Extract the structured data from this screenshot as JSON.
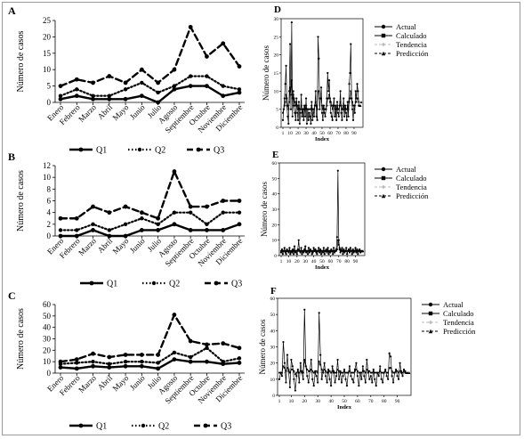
{
  "colors": {
    "line": "#000000",
    "axis": "#000000",
    "prediction": "#777777",
    "tendencia": "#bbbbbb",
    "frame": "#9a9a9a"
  },
  "chart_data": [
    {
      "panel": "A",
      "type": "line",
      "ylabel": "Número de casos",
      "ylim": [
        0,
        25
      ],
      "yticks": [
        0,
        5,
        10,
        15,
        20,
        25
      ],
      "categories": [
        "Enero",
        "Febrero",
        "Marzo",
        "Abril",
        "Mayo",
        "Junio",
        "Julio",
        "Agosto",
        "Septiembre",
        "Octubre",
        "Noviembre",
        "Diciembre"
      ],
      "legend": "bottom",
      "series": [
        {
          "name": "Q1",
          "style": "solid",
          "values": [
            1,
            2,
            1,
            1,
            1,
            2,
            0,
            4,
            5,
            5,
            2,
            3
          ]
        },
        {
          "name": "Q2",
          "style": "dotted",
          "values": [
            2,
            4,
            2,
            2,
            4,
            6,
            3,
            5,
            8,
            8,
            5,
            4
          ]
        },
        {
          "name": "Q3",
          "style": "dashed",
          "values": [
            5,
            7,
            6,
            8,
            6,
            10,
            6,
            10,
            23,
            14,
            18,
            11
          ]
        }
      ]
    },
    {
      "panel": "B",
      "type": "line",
      "ylabel": "Número de casos",
      "ylim": [
        0,
        12
      ],
      "yticks": [
        0,
        2,
        4,
        6,
        8,
        10,
        12
      ],
      "categories": [
        "Enero",
        "Febrero",
        "Marzo",
        "Abril",
        "Mayo",
        "Junio",
        "Julio",
        "Agosto",
        "Septiembre",
        "Octubre",
        "Noviembre",
        "Diciembre"
      ],
      "legend": "bottom",
      "series": [
        {
          "name": "Q1",
          "style": "solid",
          "values": [
            0,
            0,
            1,
            0,
            0,
            1,
            1,
            2,
            1,
            1,
            1,
            2
          ]
        },
        {
          "name": "Q2",
          "style": "dotted",
          "values": [
            1,
            1,
            2,
            1,
            2,
            3,
            2,
            4,
            4,
            2,
            4,
            4
          ]
        },
        {
          "name": "Q3",
          "style": "dashed",
          "values": [
            3,
            3,
            5,
            4,
            5,
            4,
            3,
            11,
            5,
            5,
            6,
            6
          ]
        }
      ]
    },
    {
      "panel": "C",
      "type": "line",
      "ylabel": "Número de casos",
      "ylim": [
        0,
        60
      ],
      "yticks": [
        0,
        10,
        20,
        30,
        40,
        50,
        60
      ],
      "categories": [
        "Enero",
        "Febrero",
        "Marzo",
        "Abril",
        "Mayo",
        "Junio",
        "Julio",
        "Agosto",
        "Septiembre",
        "Octubre",
        "Noviembre",
        "Diciembre"
      ],
      "legend": "bottom",
      "series": [
        {
          "name": "Q1",
          "style": "solid",
          "values": [
            5,
            4,
            6,
            5,
            6,
            6,
            4,
            12,
            10,
            10,
            8,
            9
          ]
        },
        {
          "name": "Q2",
          "style": "dotted",
          "values": [
            8,
            9,
            10,
            8,
            10,
            10,
            9,
            18,
            14,
            22,
            10,
            13
          ]
        },
        {
          "name": "Q3",
          "style": "dashed",
          "values": [
            10,
            12,
            17,
            14,
            16,
            16,
            16,
            51,
            28,
            25,
            26,
            22
          ]
        }
      ]
    },
    {
      "panel": "D",
      "type": "line",
      "xlabel": "Index",
      "ylabel": "Número de casos",
      "ylim": [
        0,
        30
      ],
      "yticks": [
        0,
        5,
        10,
        15,
        20,
        25,
        30
      ],
      "xticks": [
        1,
        10,
        20,
        30,
        40,
        50,
        60,
        70,
        80,
        90
      ],
      "legend": "right",
      "legend_entries": [
        "Actual",
        "Calculado",
        "Tendencia",
        "Predicción"
      ],
      "x": [
        1,
        2,
        3,
        4,
        5,
        6,
        7,
        8,
        9,
        10,
        11,
        12,
        13,
        14,
        15,
        16,
        17,
        18,
        19,
        20,
        21,
        22,
        23,
        24,
        25,
        26,
        27,
        28,
        29,
        30,
        31,
        32,
        33,
        34,
        35,
        36,
        37,
        38,
        39,
        40,
        41,
        42,
        43,
        44,
        45,
        46,
        47,
        48,
        49,
        50,
        51,
        52,
        53,
        54,
        55,
        56,
        57,
        58,
        59,
        60,
        61,
        62,
        63,
        64,
        65,
        66,
        67,
        68,
        69,
        70,
        71,
        72,
        73,
        74,
        75,
        76,
        77,
        78,
        79,
        80,
        81,
        82,
        83,
        84,
        85,
        86,
        87,
        88,
        89,
        90,
        91,
        92,
        93,
        94,
        95,
        96
      ],
      "actual": [
        2,
        5,
        8,
        12,
        17,
        6,
        3,
        1,
        10,
        23,
        5,
        29,
        3,
        10,
        6,
        4,
        2,
        8,
        4,
        2,
        7,
        1,
        4,
        9,
        3,
        5,
        2,
        6,
        3,
        8,
        1,
        5,
        2,
        4,
        3,
        1,
        7,
        2,
        5,
        3,
        6,
        10,
        3,
        2,
        25,
        19,
        5,
        8,
        11,
        4,
        2,
        6,
        4,
        3,
        5,
        8,
        15,
        10,
        13,
        7,
        4,
        3,
        2,
        6,
        8,
        3,
        5,
        2,
        7,
        4,
        3,
        6,
        10,
        4,
        2,
        5,
        8,
        3,
        6,
        4,
        2,
        7,
        3,
        12,
        15,
        23,
        8,
        5,
        2,
        6,
        4,
        10,
        8,
        12,
        10,
        6
      ],
      "calculado": [
        4,
        5,
        6,
        7,
        9,
        8,
        6,
        5,
        7,
        11,
        9,
        13,
        8,
        9,
        8,
        7,
        6,
        7,
        6,
        5,
        6,
        5,
        5,
        6,
        5,
        5,
        5,
        6,
        5,
        6,
        5,
        5,
        5,
        5,
        5,
        5,
        6,
        5,
        5,
        5,
        6,
        7,
        6,
        5,
        10,
        10,
        8,
        8,
        8,
        6,
        5,
        6,
        5,
        5,
        5,
        6,
        8,
        8,
        9,
        8,
        7,
        6,
        5,
        6,
        6,
        5,
        6,
        5,
        6,
        5,
        5,
        6,
        7,
        6,
        5,
        5,
        6,
        5,
        6,
        5,
        5,
        6,
        5,
        7,
        8,
        10,
        8,
        7,
        6,
        6,
        6,
        7,
        7,
        8,
        8,
        7
      ],
      "tendencia": 6,
      "prediccion": [
        6,
        6,
        7
      ]
    },
    {
      "panel": "E",
      "type": "line",
      "xlabel": "Index",
      "ylabel": "Número de casos",
      "ylim": [
        0,
        60
      ],
      "yticks": [
        0,
        10,
        20,
        30,
        40,
        50,
        60
      ],
      "xticks": [
        1,
        10,
        20,
        30,
        40,
        50,
        60,
        70,
        80,
        90
      ],
      "legend": "right",
      "legend_entries": [
        "Actual",
        "Calculado",
        "Tendencia",
        "Predicción"
      ],
      "x": [
        1,
        2,
        3,
        4,
        5,
        6,
        7,
        8,
        9,
        10,
        11,
        12,
        13,
        14,
        15,
        16,
        17,
        18,
        19,
        20,
        21,
        22,
        23,
        24,
        25,
        26,
        27,
        28,
        29,
        30,
        31,
        32,
        33,
        34,
        35,
        36,
        37,
        38,
        39,
        40,
        41,
        42,
        43,
        44,
        45,
        46,
        47,
        48,
        49,
        50,
        51,
        52,
        53,
        54,
        55,
        56,
        57,
        58,
        59,
        60,
        61,
        62,
        63,
        64,
        65,
        66,
        67,
        68,
        69,
        70,
        71,
        72,
        73,
        74,
        75,
        76,
        77,
        78,
        79,
        80,
        81,
        82,
        83,
        84,
        85,
        86,
        87,
        88,
        89,
        90,
        91,
        92,
        93,
        94,
        95,
        96
      ],
      "actual": [
        2,
        4,
        1,
        3,
        5,
        2,
        1,
        4,
        3,
        2,
        5,
        1,
        3,
        2,
        4,
        1,
        6,
        2,
        3,
        1,
        4,
        10,
        3,
        2,
        5,
        1,
        3,
        2,
        4,
        6,
        2,
        3,
        1,
        5,
        2,
        4,
        3,
        1,
        2,
        5,
        3,
        4,
        2,
        1,
        3,
        5,
        2,
        4,
        1,
        3,
        2,
        5,
        1,
        3,
        4,
        2,
        5,
        1,
        3,
        2,
        4,
        3,
        1,
        5,
        2,
        3,
        4,
        12,
        55,
        10,
        4,
        2,
        3,
        5,
        1,
        4,
        2,
        3,
        5,
        1,
        3,
        4,
        2,
        5,
        3,
        1,
        4,
        2,
        3,
        5,
        2,
        4,
        1,
        3,
        4,
        2
      ],
      "calculado": [
        3,
        3,
        3,
        3,
        3,
        3,
        3,
        3,
        3,
        3,
        3,
        3,
        3,
        3,
        3,
        3,
        3,
        3,
        3,
        3,
        3,
        4,
        3,
        3,
        3,
        3,
        3,
        3,
        3,
        3,
        3,
        3,
        3,
        3,
        3,
        3,
        3,
        3,
        3,
        3,
        3,
        3,
        3,
        3,
        3,
        3,
        3,
        3,
        3,
        3,
        3,
        3,
        3,
        3,
        3,
        3,
        3,
        3,
        3,
        3,
        3,
        3,
        3,
        3,
        3,
        3,
        3,
        4,
        10,
        7,
        5,
        4,
        3,
        3,
        3,
        3,
        3,
        3,
        3,
        3,
        3,
        3,
        3,
        3,
        3,
        3,
        3,
        3,
        3,
        3,
        3,
        3,
        3,
        3,
        3,
        3
      ],
      "tendencia": 3,
      "prediccion": [
        3,
        3,
        3
      ]
    },
    {
      "panel": "F",
      "type": "line",
      "xlabel": "Index",
      "ylabel": "Número de casos",
      "ylim": [
        0,
        60
      ],
      "yticks": [
        0,
        10,
        20,
        30,
        40,
        50,
        60
      ],
      "xticks": [
        1,
        10,
        20,
        30,
        40,
        50,
        60,
        70,
        80,
        90
      ],
      "legend": "right",
      "legend_entries": [
        "Actual",
        "Calculado",
        "Tendencia",
        "Predicción"
      ],
      "x": [
        1,
        2,
        3,
        4,
        5,
        6,
        7,
        8,
        9,
        10,
        11,
        12,
        13,
        14,
        15,
        16,
        17,
        18,
        19,
        20,
        21,
        22,
        23,
        24,
        25,
        26,
        27,
        28,
        29,
        30,
        31,
        32,
        33,
        34,
        35,
        36,
        37,
        38,
        39,
        40,
        41,
        42,
        43,
        44,
        45,
        46,
        47,
        48,
        49,
        50,
        51,
        52,
        53,
        54,
        55,
        56,
        57,
        58,
        59,
        60,
        61,
        62,
        63,
        64,
        65,
        66,
        67,
        68,
        69,
        70,
        71,
        72,
        73,
        74,
        75,
        76,
        77,
        78,
        79,
        80,
        81,
        82,
        83,
        84,
        85,
        86,
        87,
        88,
        89,
        90,
        91,
        92,
        93,
        94,
        95,
        96
      ],
      "actual": [
        10,
        14,
        12,
        33,
        20,
        8,
        25,
        15,
        5,
        22,
        18,
        10,
        3,
        12,
        16,
        8,
        20,
        14,
        10,
        53,
        18,
        12,
        8,
        15,
        22,
        10,
        6,
        14,
        12,
        8,
        51,
        25,
        10,
        14,
        20,
        12,
        8,
        16,
        10,
        6,
        18,
        14,
        8,
        12,
        22,
        10,
        14,
        8,
        12,
        16,
        10,
        6,
        14,
        18,
        12,
        10,
        8,
        16,
        20,
        12,
        6,
        14,
        10,
        18,
        12,
        8,
        22,
        14,
        10,
        12,
        8,
        16,
        10,
        6,
        14,
        12,
        18,
        10,
        8,
        14,
        16,
        12,
        10,
        26,
        24,
        12,
        8,
        14,
        16,
        12,
        10,
        20,
        14,
        12,
        16,
        14
      ],
      "calculado": [
        14,
        14,
        14,
        18,
        17,
        15,
        17,
        16,
        14,
        16,
        16,
        15,
        13,
        14,
        15,
        14,
        15,
        15,
        14,
        22,
        18,
        16,
        15,
        15,
        16,
        15,
        14,
        15,
        15,
        14,
        21,
        19,
        16,
        15,
        16,
        15,
        14,
        15,
        15,
        14,
        15,
        15,
        14,
        14,
        16,
        15,
        15,
        14,
        14,
        15,
        14,
        14,
        14,
        15,
        14,
        14,
        14,
        15,
        16,
        15,
        14,
        14,
        14,
        15,
        15,
        14,
        16,
        15,
        15,
        14,
        14,
        15,
        14,
        14,
        14,
        14,
        15,
        14,
        14,
        14,
        15,
        14,
        14,
        17,
        17,
        15,
        14,
        14,
        15,
        15,
        14,
        15,
        15,
        14,
        15,
        15
      ],
      "tendencia": 14,
      "prediccion": [
        14,
        14,
        14
      ]
    }
  ]
}
